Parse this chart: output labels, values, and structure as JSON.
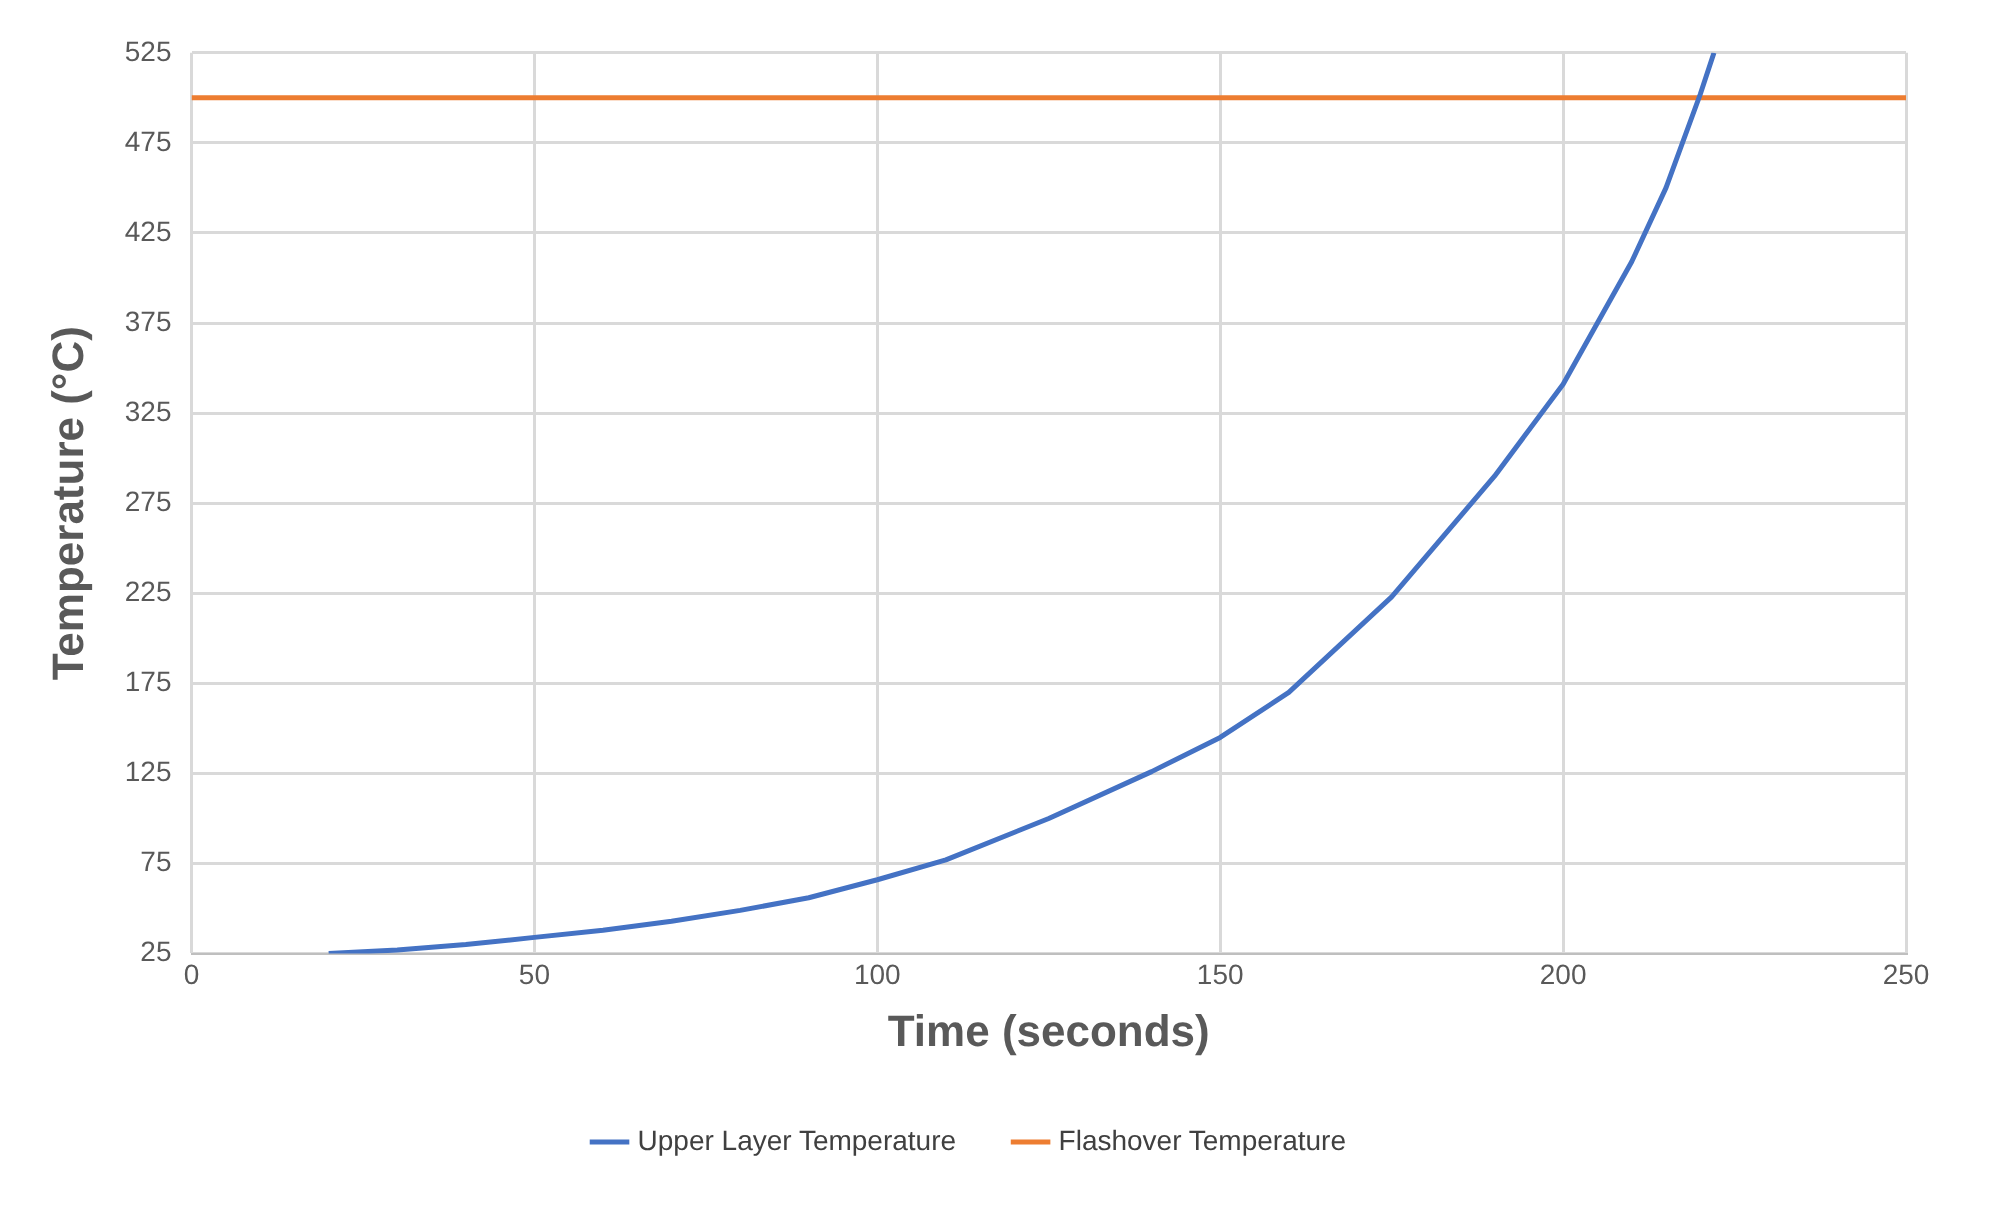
{
  "chart_data": {
    "type": "line",
    "xlabel": "Time (seconds)",
    "ylabel": "Temperature (°C)",
    "xlim": [
      0,
      250
    ],
    "xticks": [
      0,
      50,
      100,
      150,
      200,
      250
    ],
    "ylim": [
      25,
      525
    ],
    "yticks": [
      25,
      75,
      125,
      175,
      225,
      275,
      325,
      375,
      425,
      475,
      525
    ],
    "grid": true,
    "legend": "bottom",
    "marker": "none",
    "line_style": "solid",
    "series": [
      {
        "name": "Upper Layer Temperature",
        "color": "#4472c4",
        "x": [
          20,
          30,
          40,
          50,
          60,
          70,
          80,
          90,
          100,
          110,
          125,
          140,
          150,
          160,
          175,
          190,
          200,
          210,
          215,
          220,
          222
        ],
        "values": [
          25,
          27,
          30,
          34,
          38,
          43,
          49,
          56,
          66,
          77,
          100,
          126,
          145,
          170,
          223,
          290,
          341,
          409,
          450,
          502,
          525
        ]
      },
      {
        "name": "Flashover Temperature",
        "color": "#ed7d31",
        "x": [
          0,
          250
        ],
        "values": [
          500,
          500
        ]
      }
    ]
  }
}
